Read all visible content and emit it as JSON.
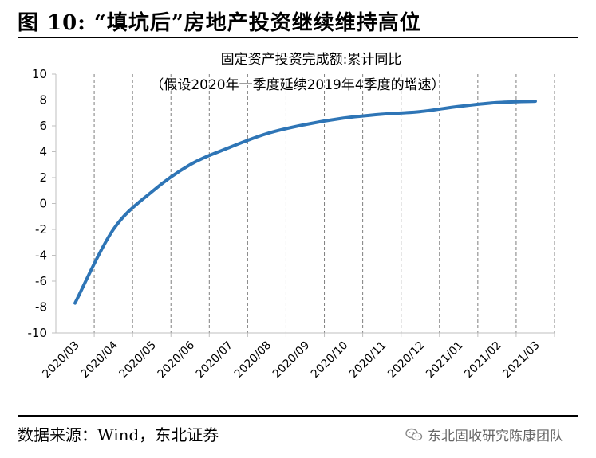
{
  "figure": {
    "title": "图  10:  “填坑后”房地产投资继续维持高位"
  },
  "source": {
    "text": "数据来源：Wind，东北证券"
  },
  "watermark": {
    "text": "东北固收研究陈康团队",
    "icon": "wechat-icon"
  },
  "chart_data": {
    "type": "line",
    "title": "固定资产投资完成额:累计同比",
    "subtitle": "（假设2020年一季度延续2019年4季度的增速）",
    "xlabel": "",
    "ylabel": "",
    "ylim": [
      -10,
      10
    ],
    "yticks": [
      10,
      8,
      6,
      4,
      2,
      0,
      -2,
      -4,
      -6,
      -8,
      -10
    ],
    "grid": "vertical-dashed",
    "categories": [
      "2020/03",
      "2020/04",
      "2020/05",
      "2020/06",
      "2020/07",
      "2020/08",
      "2020/09",
      "2020/10",
      "2020/11",
      "2020/12",
      "2021/01",
      "2021/02",
      "2021/03"
    ],
    "series": [
      {
        "name": "固定资产投资完成额:累计同比",
        "color": "#2e75b6",
        "values": [
          -7.7,
          -2.0,
          0.9,
          3.0,
          4.3,
          5.4,
          6.1,
          6.6,
          6.9,
          7.1,
          7.5,
          7.8,
          7.9
        ]
      }
    ]
  }
}
